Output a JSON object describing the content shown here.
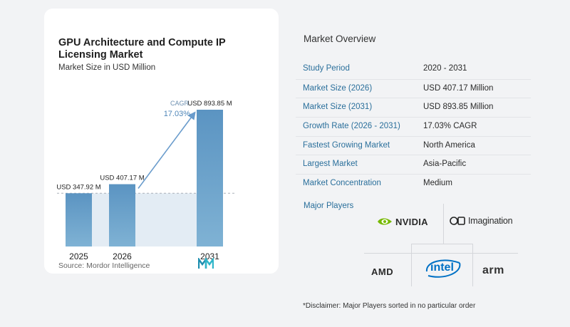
{
  "left": {
    "title": "GPU Architecture and Compute IP Licensing Market",
    "subtitle": "Market Size in USD Million",
    "source": "Source:  Mordor Intelligence"
  },
  "chart_data": {
    "type": "bar",
    "categories": [
      "2025",
      "2026",
      "2031"
    ],
    "values": [
      347.92,
      407.17,
      893.85
    ],
    "value_labels": [
      "USD 347.92 M",
      "USD 407.17 M",
      "USD 893.85 M"
    ],
    "cagr_label": "CAGR",
    "cagr_value": "17.03%",
    "title": "GPU Architecture and Compute IP Licensing Market",
    "subtitle": "Market Size in USD Million",
    "ylim": [
      0,
      893.85
    ],
    "colors": {
      "bar_top": "#5b94c2",
      "bar_bottom": "#7fb2d4",
      "band": "#e3ecf4",
      "arrow": "#6a9ccc"
    }
  },
  "right": {
    "overview_title": "Market Overview",
    "rows": [
      {
        "label": "Study Period",
        "value": "2020 - 2031"
      },
      {
        "label": "Market Size (2026)",
        "value": "USD 407.17 Million"
      },
      {
        "label": "Market Size (2031)",
        "value": "USD 893.85 Million"
      },
      {
        "label": "Growth Rate (2026 - 2031)",
        "value": "17.03% CAGR"
      },
      {
        "label": "Fastest Growing Market",
        "value": "North America"
      },
      {
        "label": "Largest Market",
        "value": "Asia-Pacific"
      },
      {
        "label": "Market Concentration",
        "value": "Medium"
      }
    ],
    "players_title": "Major Players",
    "players": [
      "NVIDIA",
      "Imagination",
      "AMD",
      "intel",
      "arm"
    ],
    "disclaimer": "*Disclaimer: Major Players sorted in no particular order"
  }
}
